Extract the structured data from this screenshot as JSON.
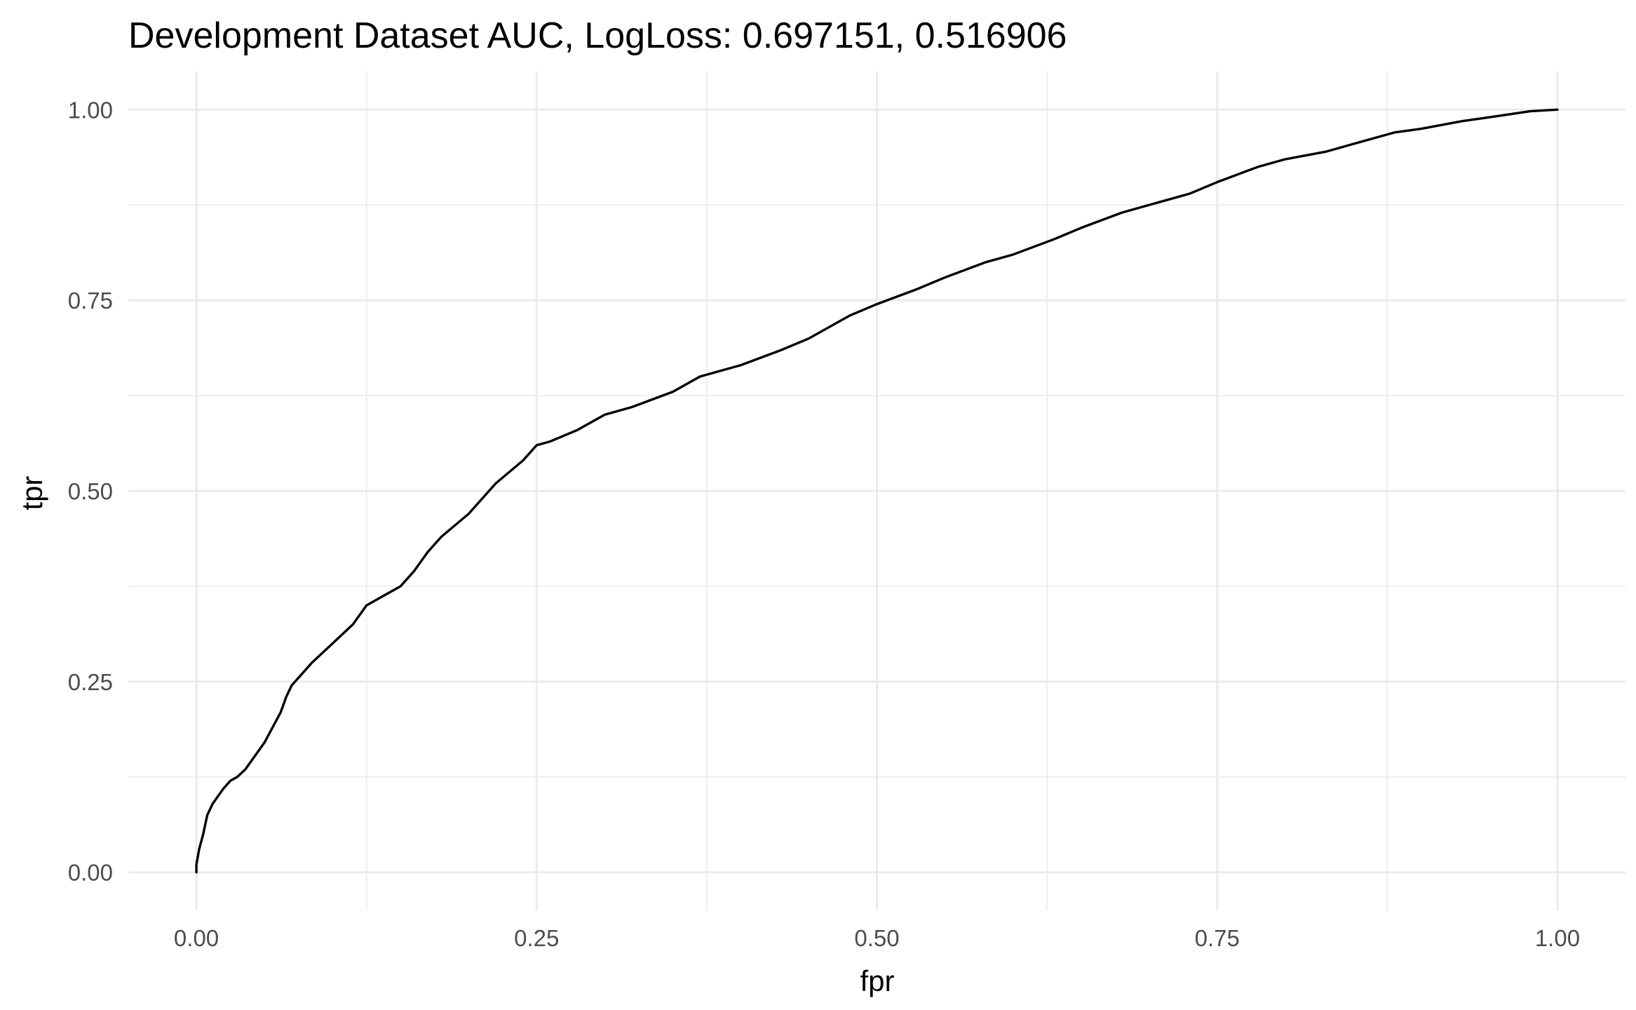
{
  "chart_data": {
    "type": "line",
    "title": "Development Dataset AUC, LogLoss: 0.697151, 0.516906",
    "xlabel": "fpr",
    "ylabel": "tpr",
    "xlim": [
      -0.05,
      1.05
    ],
    "ylim": [
      -0.05,
      1.05
    ],
    "x_major_ticks": [
      0.0,
      0.25,
      0.5,
      0.75,
      1.0
    ],
    "x_tick_labels": [
      "0.00",
      "0.25",
      "0.50",
      "0.75",
      "1.00"
    ],
    "y_major_ticks": [
      0.0,
      0.25,
      0.5,
      0.75,
      1.0
    ],
    "y_tick_labels": [
      "0.00",
      "0.25",
      "0.50",
      "0.75",
      "1.00"
    ],
    "grid": true,
    "legend": "none",
    "colors": {
      "line": "#000000",
      "grid": "#ebebeb",
      "tick_text": "#4d4d4d",
      "background": "#ffffff"
    },
    "series": [
      {
        "x": [
          0.0,
          0.0,
          0.002,
          0.005,
          0.008,
          0.012,
          0.016,
          0.02,
          0.025,
          0.03,
          0.036,
          0.042,
          0.05,
          0.056,
          0.062,
          0.066,
          0.07,
          0.075,
          0.085,
          0.1,
          0.115,
          0.125,
          0.14,
          0.15,
          0.16,
          0.17,
          0.18,
          0.2,
          0.21,
          0.22,
          0.24,
          0.25,
          0.26,
          0.28,
          0.3,
          0.32,
          0.35,
          0.37,
          0.4,
          0.43,
          0.45,
          0.48,
          0.5,
          0.53,
          0.55,
          0.58,
          0.6,
          0.63,
          0.65,
          0.68,
          0.7,
          0.73,
          0.75,
          0.78,
          0.8,
          0.83,
          0.85,
          0.88,
          0.9,
          0.93,
          0.95,
          0.98,
          1.0
        ],
        "y": [
          0.0,
          0.01,
          0.03,
          0.05,
          0.075,
          0.09,
          0.1,
          0.11,
          0.12,
          0.125,
          0.135,
          0.15,
          0.17,
          0.19,
          0.21,
          0.23,
          0.245,
          0.255,
          0.275,
          0.3,
          0.325,
          0.35,
          0.365,
          0.375,
          0.395,
          0.42,
          0.44,
          0.47,
          0.49,
          0.51,
          0.54,
          0.56,
          0.565,
          0.58,
          0.6,
          0.61,
          0.63,
          0.65,
          0.665,
          0.685,
          0.7,
          0.73,
          0.745,
          0.765,
          0.78,
          0.8,
          0.81,
          0.83,
          0.845,
          0.865,
          0.875,
          0.89,
          0.905,
          0.925,
          0.935,
          0.945,
          0.955,
          0.97,
          0.975,
          0.985,
          0.99,
          0.998,
          1.0
        ]
      }
    ]
  }
}
